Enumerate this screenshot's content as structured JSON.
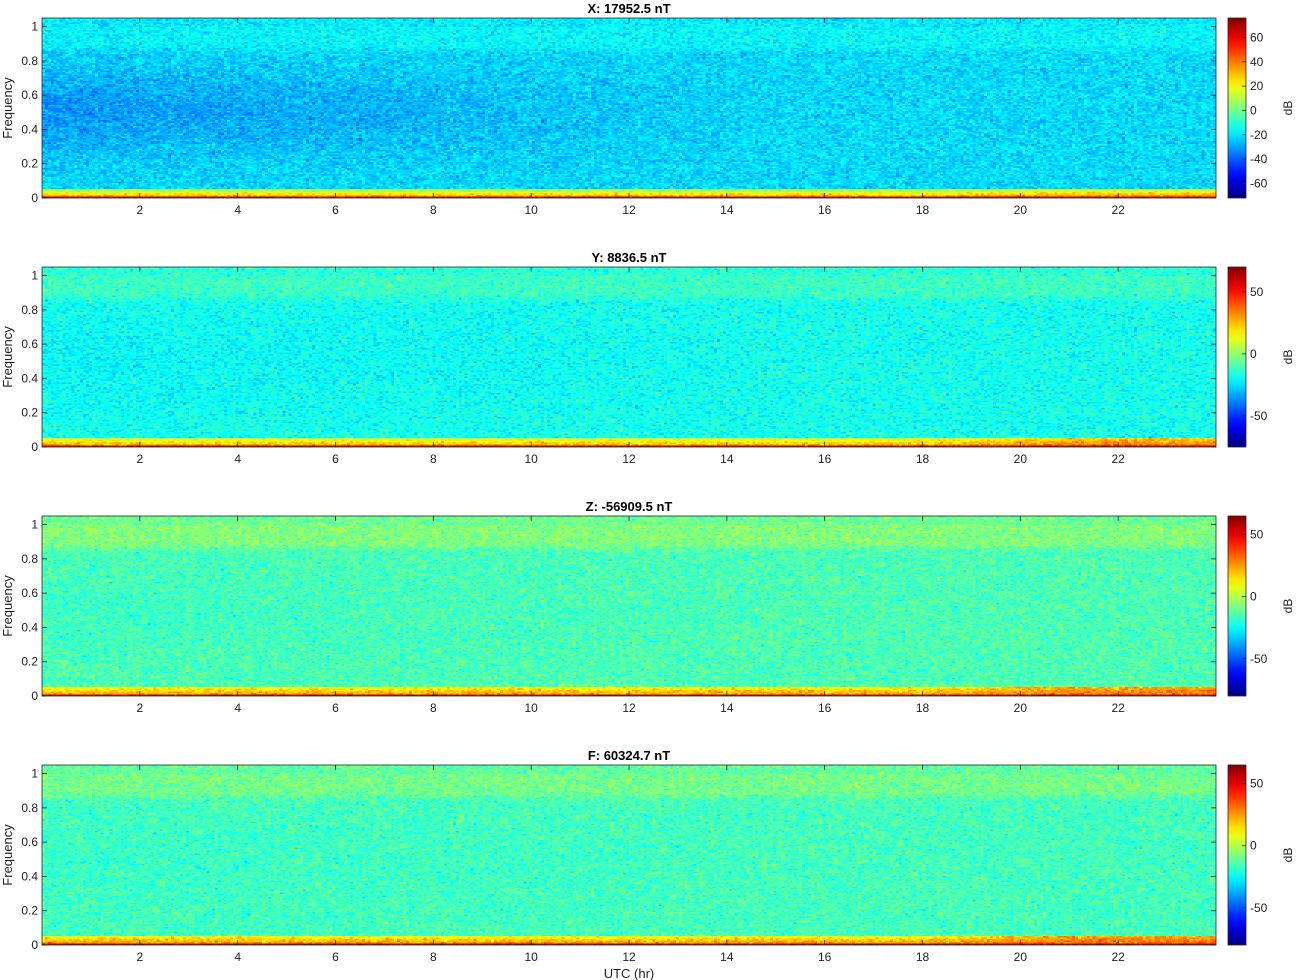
{
  "chart_data": [
    {
      "type": "heatmap",
      "title": "X: 17952.5 nT",
      "xlabel": "",
      "ylabel": "Frequency",
      "xlim": [
        0,
        24
      ],
      "ylim": [
        0,
        1.05
      ],
      "xticks": [
        2,
        4,
        6,
        8,
        10,
        12,
        14,
        16,
        18,
        20,
        22
      ],
      "yticks": [
        0,
        0.2,
        0.4,
        0.6,
        0.8,
        1
      ],
      "colorbar": {
        "label": "dB",
        "range": [
          -72,
          76
        ],
        "ticks": [
          -60,
          -40,
          -20,
          0,
          20,
          40,
          60
        ]
      },
      "base_db": -22,
      "mid_dip_db": -10,
      "high_band_db": 5,
      "low_band_db": 40,
      "late_low_boost_db": 4
    },
    {
      "type": "heatmap",
      "title": "Y: 8836.5 nT",
      "xlabel": "",
      "ylabel": "Frequency",
      "xlim": [
        0,
        24
      ],
      "ylim": [
        0,
        1.05
      ],
      "xticks": [
        2,
        4,
        6,
        8,
        10,
        12,
        14,
        16,
        18,
        20,
        22
      ],
      "yticks": [
        0,
        0.2,
        0.4,
        0.6,
        0.8,
        1
      ],
      "colorbar": {
        "label": "dB",
        "range": [
          -75,
          70
        ],
        "ticks": [
          -50,
          0,
          50
        ]
      },
      "base_db": -18,
      "mid_dip_db": -3,
      "high_band_db": 6,
      "low_band_db": 33,
      "late_low_boost_db": 10
    },
    {
      "type": "heatmap",
      "title": "Z: -56909.5 nT",
      "xlabel": "",
      "ylabel": "Frequency",
      "xlim": [
        0,
        24
      ],
      "ylim": [
        0,
        1.05
      ],
      "xticks": [
        2,
        4,
        6,
        8,
        10,
        12,
        14,
        16,
        18,
        20,
        22
      ],
      "yticks": [
        0,
        0.2,
        0.4,
        0.6,
        0.8,
        1
      ],
      "colorbar": {
        "label": "dB",
        "range": [
          -80,
          65
        ],
        "ticks": [
          -50,
          0,
          50
        ]
      },
      "base_db": -15,
      "mid_dip_db": -2,
      "high_band_db": 8,
      "low_band_db": 28,
      "late_low_boost_db": 8
    },
    {
      "type": "heatmap",
      "title": "F: 60324.7 nT",
      "xlabel": "UTC (hr)",
      "ylabel": "Frequency",
      "xlim": [
        0,
        24
      ],
      "ylim": [
        0,
        1.05
      ],
      "xticks": [
        2,
        4,
        6,
        8,
        10,
        12,
        14,
        16,
        18,
        20,
        22
      ],
      "yticks": [
        0,
        0.2,
        0.4,
        0.6,
        0.8,
        1
      ],
      "colorbar": {
        "label": "dB",
        "range": [
          -80,
          65
        ],
        "ticks": [
          -50,
          0,
          50
        ]
      },
      "base_db": -16,
      "mid_dip_db": -2,
      "high_band_db": 7,
      "low_band_db": 30,
      "late_low_boost_db": 9
    }
  ]
}
